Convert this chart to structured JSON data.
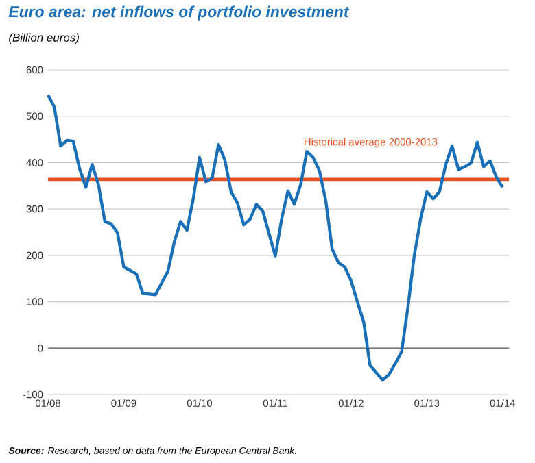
{
  "chart_data": {
    "type": "line",
    "title": "Euro area: net inflows of portfolio investment",
    "subtitle": "(Billion euros)",
    "annotations": [
      "**Source:** Research, based on data from the European Central Bank."
    ],
    "series": [
      {
        "color": "#1a70b8",
        "x": [
          "2008-01",
          "2008-02",
          "2008-03",
          "2008-04",
          "2008-05",
          "2008-06",
          "2008-07",
          "2008-08",
          "2008-09",
          "2008-10",
          "2008-11",
          "2008-12",
          "2009-01",
          "2009-03",
          "2009-04",
          "2009-06",
          "2009-08",
          "2009-09",
          "2009-10",
          "2009-11",
          "2009-12",
          "2010-01",
          "2010-02",
          "2010-03",
          "2010-04",
          "2010-05",
          "2010-06",
          "2010-07",
          "2010-08",
          "2010-09",
          "2010-10",
          "2010-11",
          "2011-01",
          "2011-02",
          "2011-03",
          "2011-04",
          "2011-05",
          "2011-06",
          "2011-07",
          "2011-08",
          "2011-09",
          "2011-10",
          "2011-11",
          "2011-12",
          "2012-01",
          "2012-02",
          "2012-03",
          "2012-04",
          "2012-06",
          "2012-07",
          "2012-08",
          "2012-09",
          "2012-10",
          "2012-11",
          "2012-12",
          "2013-01",
          "2013-02",
          "2013-03",
          "2013-04",
          "2013-05",
          "2013-06",
          "2013-07",
          "2013-08",
          "2013-09",
          "2013-10",
          "2013-11",
          "2013-12",
          "2014-01"
        ],
        "values": [
          546,
          520,
          436,
          448,
          446,
          387,
          347,
          396,
          352,
          273,
          268,
          249,
          175,
          160,
          118,
          115,
          166,
          229,
          273,
          254,
          322,
          411,
          359,
          367,
          439,
          406,
          337,
          313,
          266,
          278,
          310,
          296,
          199,
          278,
          339,
          310,
          352,
          424,
          411,
          382,
          317,
          214,
          184,
          175,
          145,
          100,
          56,
          -37,
          -69,
          -57,
          -33,
          -8,
          88,
          199,
          278,
          337,
          322,
          337,
          396,
          436,
          385,
          391,
          399,
          444,
          391,
          404,
          369,
          347
        ]
      }
    ],
    "xlim": [
      "2008-01",
      "2014-02"
    ],
    "xticks": [
      {
        "value": "2008-01",
        "label": "01/08"
      },
      {
        "value": "2009-01",
        "label": "01/09"
      },
      {
        "value": "2010-01",
        "label": "01/10"
      },
      {
        "value": "2011-01",
        "label": "01/11"
      },
      {
        "value": "2012-01",
        "label": "01/12"
      },
      {
        "value": "2013-01",
        "label": "01/13"
      },
      {
        "value": "2014-01",
        "label": "01/14"
      }
    ],
    "ylim": [
      -100,
      600
    ],
    "yticks": [
      -100,
      0,
      100,
      200,
      300,
      400,
      500,
      600
    ],
    "grid": "y",
    "ref_lines": [
      {
        "axis": "y",
        "value": 364,
        "label": "Historical average 2000-2013",
        "color": "#e8501e"
      }
    ]
  }
}
